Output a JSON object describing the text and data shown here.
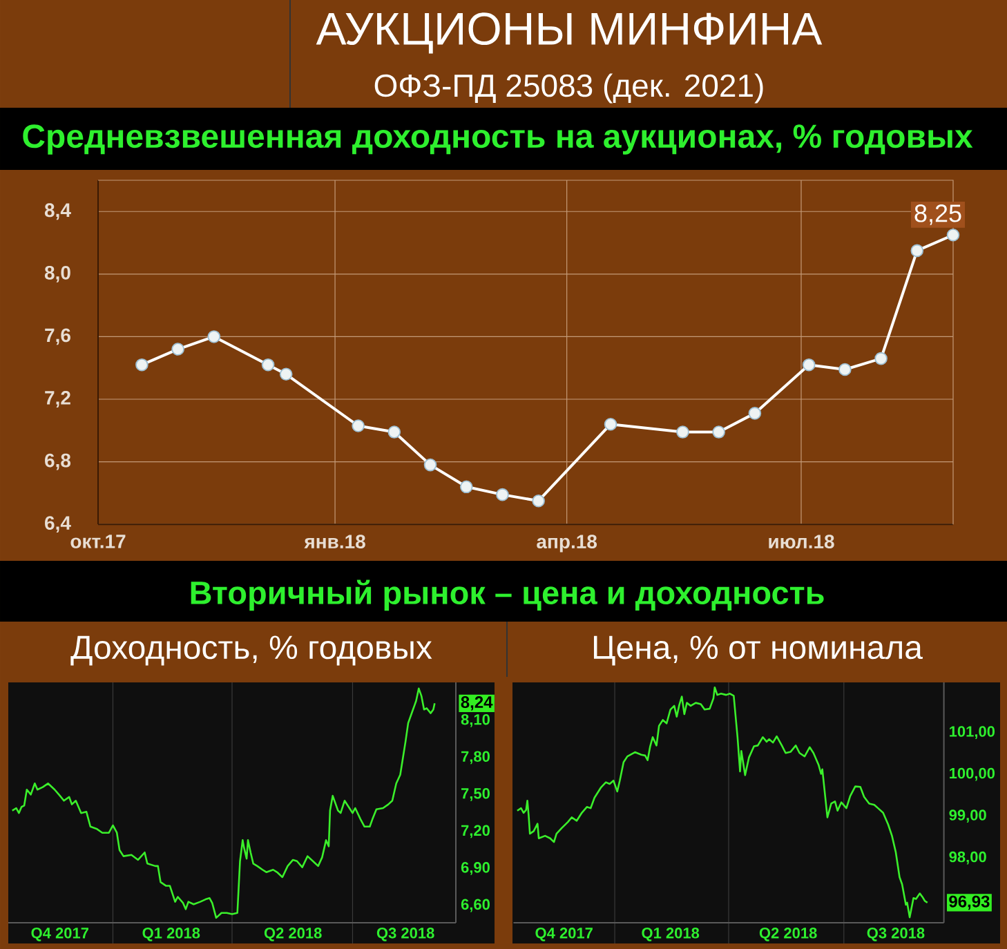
{
  "chart_data": [
    {
      "type": "line",
      "title": "Средневзвешенная доходность на аукционах, % годовых",
      "annotations": [
        "АУКЦИОНЫ МИНФИНА",
        "ОФЗ-ПД 25083 (дек. 2021)"
      ],
      "x": [
        "2017-10-18",
        "2017-11-01",
        "2017-11-15",
        "2017-12-06",
        "2017-12-13",
        "2018-01-10",
        "2018-01-24",
        "2018-02-07",
        "2018-02-21",
        "2018-03-07",
        "2018-03-21",
        "2018-04-18",
        "2018-05-16",
        "2018-05-30",
        "2018-06-13",
        "2018-07-04",
        "2018-07-18",
        "2018-08-01",
        "2018-08-15",
        "2018-08-29"
      ],
      "values": [
        7.42,
        7.52,
        7.6,
        7.42,
        7.36,
        7.03,
        6.99,
        6.78,
        6.64,
        6.59,
        6.55,
        7.04,
        6.99,
        6.99,
        7.11,
        7.42,
        7.39,
        7.46,
        8.15,
        8.25
      ],
      "value_labels": [
        null,
        null,
        null,
        null,
        null,
        null,
        null,
        null,
        null,
        null,
        null,
        null,
        null,
        null,
        null,
        null,
        null,
        null,
        null,
        "8,25"
      ],
      "color": "#ffffff",
      "marker": "circle",
      "line_style": "solid",
      "grid": true,
      "xlim": [
        "2017-10-01",
        "2018-08-29"
      ],
      "ylim": [
        6.4,
        8.6
      ],
      "xticks": [
        {
          "value": "2017-10-01",
          "label": "окт.17"
        },
        {
          "value": "2018-01-01",
          "label": "янв.18"
        },
        {
          "value": "2018-04-01",
          "label": "апр.18"
        },
        {
          "value": "2018-07-01",
          "label": "июл.18"
        }
      ],
      "yticks": [
        {
          "value": 6.4,
          "label": "6,4"
        },
        {
          "value": 6.8,
          "label": "6,8"
        },
        {
          "value": 7.2,
          "label": "7,2"
        },
        {
          "value": 7.6,
          "label": "7,6"
        },
        {
          "value": 8.0,
          "label": "8,0"
        },
        {
          "value": 8.4,
          "label": "8,4"
        }
      ]
    },
    {
      "type": "line",
      "title": "Доходность, % годовых",
      "annotations": [
        "Вторичный рынок – цена и доходность"
      ],
      "x": [
        "2017-10-17",
        "2017-10-20",
        "2017-10-22",
        "2017-10-24",
        "2017-10-26",
        "2017-10-28",
        "2017-10-31",
        "2017-11-03",
        "2017-11-05",
        "2017-11-09",
        "2017-11-13",
        "2017-11-18",
        "2017-11-22",
        "2017-11-25",
        "2017-11-29",
        "2017-12-01",
        "2017-12-04",
        "2017-12-08",
        "2017-12-12",
        "2017-12-15",
        "2017-12-20",
        "2017-12-24",
        "2017-12-29",
        "2018-01-01",
        "2018-01-04",
        "2018-01-06",
        "2018-01-09",
        "2018-01-15",
        "2018-01-20",
        "2018-01-25",
        "2018-01-27",
        "2018-02-02",
        "2018-02-04",
        "2018-02-06",
        "2018-02-10",
        "2018-02-13",
        "2018-02-17",
        "2018-02-19",
        "2018-02-23",
        "2018-02-25",
        "2018-02-27",
        "2018-03-03",
        "2018-03-08",
        "2018-03-12",
        "2018-03-15",
        "2018-03-17",
        "2018-03-20",
        "2018-03-24",
        "2018-03-28",
        "2018-04-01",
        "2018-04-05",
        "2018-04-07",
        "2018-04-09",
        "2018-04-10",
        "2018-04-12",
        "2018-04-13",
        "2018-04-15",
        "2018-04-17",
        "2018-04-20",
        "2018-04-24",
        "2018-04-27",
        "2018-05-02",
        "2018-05-05",
        "2018-05-09",
        "2018-05-13",
        "2018-05-17",
        "2018-05-20",
        "2018-05-24",
        "2018-05-28",
        "2018-06-02",
        "2018-06-05",
        "2018-06-08",
        "2018-06-11",
        "2018-06-13",
        "2018-06-14",
        "2018-06-16",
        "2018-06-20",
        "2018-06-22",
        "2018-06-25",
        "2018-06-28",
        "2018-07-01",
        "2018-07-03",
        "2018-07-07",
        "2018-07-10",
        "2018-07-14",
        "2018-07-16",
        "2018-07-19",
        "2018-07-24",
        "2018-07-28",
        "2018-07-31",
        "2018-08-03",
        "2018-08-06",
        "2018-08-10",
        "2018-08-12",
        "2018-08-15",
        "2018-08-17",
        "2018-08-18",
        "2018-08-20",
        "2018-08-22",
        "2018-08-24",
        "2018-08-26",
        "2018-08-29",
        "2018-08-31",
        "2018-09-01"
      ],
      "values": [
        7.37,
        7.39,
        7.35,
        7.4,
        7.41,
        7.54,
        7.5,
        7.59,
        7.54,
        7.56,
        7.59,
        7.54,
        7.49,
        7.45,
        7.48,
        7.42,
        7.45,
        7.35,
        7.36,
        7.24,
        7.22,
        7.19,
        7.19,
        7.25,
        7.19,
        7.05,
        7.0,
        7.01,
        6.97,
        7.03,
        6.94,
        6.92,
        6.92,
        6.79,
        6.76,
        6.76,
        6.63,
        6.67,
        6.62,
        6.57,
        6.63,
        6.61,
        6.63,
        6.65,
        6.66,
        6.62,
        6.5,
        6.54,
        6.54,
        6.53,
        6.54,
        6.96,
        7.13,
        7.07,
        6.98,
        7.13,
        7.03,
        6.94,
        6.92,
        6.89,
        6.87,
        6.89,
        6.87,
        6.83,
        6.92,
        6.97,
        6.96,
        6.91,
        7.0,
        6.95,
        6.92,
        6.99,
        7.13,
        7.08,
        7.37,
        7.49,
        7.37,
        7.35,
        7.45,
        7.4,
        7.35,
        7.39,
        7.3,
        7.24,
        7.24,
        7.3,
        7.38,
        7.39,
        7.42,
        7.45,
        7.59,
        7.66,
        7.93,
        8.08,
        8.17,
        8.23,
        8.26,
        8.36,
        8.3,
        8.19,
        8.2,
        8.16,
        8.19,
        8.24
      ],
      "value_labels": [
        null,
        null,
        null,
        null,
        null,
        null,
        null,
        null,
        null,
        null,
        null,
        null,
        null,
        null,
        null,
        null,
        null,
        null,
        null,
        null,
        null,
        null,
        null,
        null,
        null,
        null,
        null,
        null,
        null,
        null,
        null,
        null,
        null,
        null,
        null,
        null,
        null,
        null,
        null,
        null,
        null,
        null,
        null,
        null,
        null,
        null,
        null,
        null,
        null,
        null,
        null,
        null,
        null,
        null,
        null,
        null,
        null,
        null,
        null,
        null,
        null,
        null,
        null,
        null,
        null,
        null,
        null,
        null,
        null,
        null,
        null,
        null,
        null,
        null,
        null,
        null,
        null,
        null,
        null,
        null,
        null,
        null,
        null,
        null,
        null,
        null,
        null,
        null,
        null,
        null,
        null,
        null,
        null,
        null,
        null,
        null,
        null,
        null,
        null,
        null,
        null,
        null,
        null,
        "8,24"
      ],
      "color": "#3bef2b",
      "line_style": "solid",
      "grid": "x",
      "xlim": [
        "2017-10-14",
        "2018-09-17"
      ],
      "ylim": [
        6.46,
        8.41
      ],
      "xticks": [
        {
          "value": "2017-11-22",
          "label": "Q4 2017"
        },
        {
          "value": "2018-01-01",
          "label": null
        },
        {
          "value": "2018-02-14",
          "label": "Q1 2018"
        },
        {
          "value": "2018-04-01",
          "label": null
        },
        {
          "value": "2018-05-17",
          "label": "Q2 2018"
        },
        {
          "value": "2018-07-01",
          "label": null
        },
        {
          "value": "2018-08-10",
          "label": "Q3 2018"
        }
      ],
      "yticks": [
        {
          "value": 6.6,
          "label": "6,60"
        },
        {
          "value": 6.9,
          "label": "6,90"
        },
        {
          "value": 7.2,
          "label": "7,20"
        },
        {
          "value": 7.5,
          "label": "7,50"
        },
        {
          "value": 7.8,
          "label": "7,80"
        },
        {
          "value": 8.1,
          "label": "8,10"
        }
      ]
    },
    {
      "type": "line",
      "title": "Цена, % от номинала",
      "x": [
        "2017-10-16",
        "2017-10-19",
        "2017-10-21",
        "2017-10-23",
        "2017-10-24",
        "2017-10-25",
        "2017-10-26",
        "2017-10-29",
        "2017-11-01",
        "2017-11-02",
        "2017-11-07",
        "2017-11-11",
        "2017-11-14",
        "2017-11-16",
        "2017-11-20",
        "2017-11-25",
        "2017-11-28",
        "2017-12-02",
        "2017-12-06",
        "2017-12-10",
        "2017-12-13",
        "2017-12-16",
        "2017-12-21",
        "2017-12-25",
        "2017-12-28",
        "2017-12-31",
        "2018-01-03",
        "2018-01-05",
        "2018-01-08",
        "2018-01-11",
        "2018-01-17",
        "2018-01-22",
        "2018-01-25",
        "2018-01-27",
        "2018-01-29",
        "2018-01-31",
        "2018-02-03",
        "2018-02-05",
        "2018-02-08",
        "2018-02-11",
        "2018-02-14",
        "2018-02-17",
        "2018-02-19",
        "2018-02-21",
        "2018-02-23",
        "2018-02-25",
        "2018-02-27",
        "2018-03-02",
        "2018-03-06",
        "2018-03-10",
        "2018-03-13",
        "2018-03-17",
        "2018-03-20",
        "2018-03-21",
        "2018-03-23",
        "2018-03-26",
        "2018-03-30",
        "2018-04-02",
        "2018-04-05",
        "2018-04-08",
        "2018-04-10",
        "2018-04-11",
        "2018-04-14",
        "2018-04-17",
        "2018-04-21",
        "2018-04-24",
        "2018-04-28",
        "2018-05-01",
        "2018-05-03",
        "2018-05-06",
        "2018-05-09",
        "2018-05-13",
        "2018-05-16",
        "2018-05-20",
        "2018-05-24",
        "2018-05-27",
        "2018-05-31",
        "2018-06-04",
        "2018-06-07",
        "2018-06-11",
        "2018-06-13",
        "2018-06-14",
        "2018-06-18",
        "2018-06-21",
        "2018-06-24",
        "2018-06-26",
        "2018-06-29",
        "2018-07-03",
        "2018-07-06",
        "2018-07-10",
        "2018-07-14",
        "2018-07-17",
        "2018-07-21",
        "2018-07-25",
        "2018-07-28",
        "2018-08-01",
        "2018-08-05",
        "2018-08-08",
        "2018-08-11",
        "2018-08-14",
        "2018-08-16",
        "2018-08-19",
        "2018-08-20",
        "2018-08-22",
        "2018-08-25",
        "2018-08-27",
        "2018-08-30",
        "2018-09-01",
        "2018-09-03",
        "2018-09-05"
      ],
      "values": [
        99.13,
        99.19,
        99.08,
        99.15,
        99.37,
        99.02,
        98.58,
        98.64,
        98.82,
        98.47,
        98.53,
        98.47,
        98.38,
        98.58,
        98.71,
        98.86,
        98.97,
        98.89,
        99.08,
        99.22,
        99.19,
        99.44,
        99.68,
        99.81,
        99.77,
        99.85,
        99.59,
        99.85,
        100.29,
        100.43,
        100.53,
        100.47,
        100.45,
        100.34,
        100.67,
        100.89,
        100.69,
        101.16,
        101.3,
        101.22,
        101.55,
        101.64,
        101.38,
        101.66,
        101.86,
        101.44,
        101.71,
        101.64,
        101.71,
        101.68,
        101.55,
        101.57,
        101.82,
        102.08,
        101.9,
        101.93,
        101.9,
        101.93,
        101.88,
        100.89,
        100.07,
        100.56,
        99.98,
        100.4,
        100.67,
        100.69,
        100.89,
        100.78,
        100.84,
        100.76,
        100.91,
        100.69,
        100.51,
        100.54,
        100.69,
        100.51,
        100.43,
        100.65,
        100.51,
        100.23,
        100.01,
        100.12,
        98.97,
        99.3,
        99.35,
        99.13,
        99.33,
        99.19,
        99.48,
        99.71,
        99.7,
        99.46,
        99.3,
        99.27,
        99.19,
        99.08,
        98.8,
        98.53,
        98.14,
        97.54,
        97.37,
        96.88,
        96.93,
        96.58,
        97.04,
        97.02,
        97.15,
        97.07,
        96.97,
        96.93
      ],
      "value_labels": [
        null,
        null,
        null,
        null,
        null,
        null,
        null,
        null,
        null,
        null,
        null,
        null,
        null,
        null,
        null,
        null,
        null,
        null,
        null,
        null,
        null,
        null,
        null,
        null,
        null,
        null,
        null,
        null,
        null,
        null,
        null,
        null,
        null,
        null,
        null,
        null,
        null,
        null,
        null,
        null,
        null,
        null,
        null,
        null,
        null,
        null,
        null,
        null,
        null,
        null,
        null,
        null,
        null,
        null,
        null,
        null,
        null,
        null,
        null,
        null,
        null,
        null,
        null,
        null,
        null,
        null,
        null,
        null,
        null,
        null,
        null,
        null,
        null,
        null,
        null,
        null,
        null,
        null,
        null,
        null,
        null,
        null,
        null,
        null,
        null,
        null,
        null,
        null,
        null,
        null,
        null,
        null,
        null,
        null,
        null,
        null,
        null,
        null,
        null,
        null,
        null,
        null,
        null,
        null,
        null,
        null,
        null,
        null,
        null,
        "96,93"
      ],
      "color": "#3bef2b",
      "line_style": "solid",
      "grid": "x",
      "xlim": [
        "2017-10-13",
        "2018-09-18"
      ],
      "ylim": [
        96.45,
        102.2
      ],
      "xticks": [
        {
          "value": "2017-11-22",
          "label": "Q4 2017"
        },
        {
          "value": "2018-01-01",
          "label": null
        },
        {
          "value": "2018-02-14",
          "label": "Q1 2018"
        },
        {
          "value": "2018-04-01",
          "label": null
        },
        {
          "value": "2018-05-18",
          "label": "Q2 2018"
        },
        {
          "value": "2018-07-01",
          "label": null
        },
        {
          "value": "2018-08-11",
          "label": "Q3 2018"
        }
      ],
      "yticks": [
        {
          "value": 98,
          "label": "98,00"
        },
        {
          "value": 99,
          "label": "99,00"
        },
        {
          "value": 100,
          "label": "100,00"
        },
        {
          "value": 101,
          "label": "101,00"
        }
      ]
    }
  ]
}
